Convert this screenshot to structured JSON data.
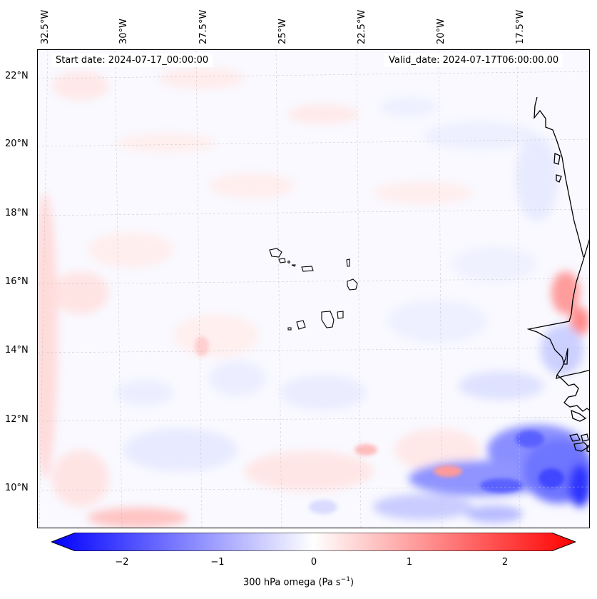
{
  "header": {
    "start_date": "Start date: 2024-07-17_00:00:00",
    "valid_date": "Valid_date: 2024-07-17T06:00:00.00"
  },
  "map": {
    "longitude_labels": [
      "32.5°W",
      "30°W",
      "27.5°W",
      "25°W",
      "22.5°W",
      "20°W",
      "17.5°W"
    ],
    "latitude_labels": [
      "22°N",
      "20°N",
      "18°N",
      "16°N",
      "14°N",
      "12°N",
      "10°N"
    ],
    "extent": {
      "lon_min": -32.7,
      "lon_max": -15.3,
      "lat_min": 8.9,
      "lat_max": 22.8
    },
    "gridlines": true,
    "features": [
      "cape-verde-islands",
      "west-african-coastline"
    ]
  },
  "colorbar": {
    "tick_labels": [
      "−2",
      "−1",
      "0",
      "1",
      "2"
    ],
    "tick_values": [
      -2,
      -1,
      0,
      1,
      2
    ],
    "range": [
      -2.6,
      2.6
    ],
    "label_main": "300 hPa omega (Pa s",
    "label_sup": "−1",
    "label_end": ")",
    "colors": {
      "negative": "#0000ff",
      "zero": "#ffffff",
      "positive": "#ff0000"
    }
  }
}
